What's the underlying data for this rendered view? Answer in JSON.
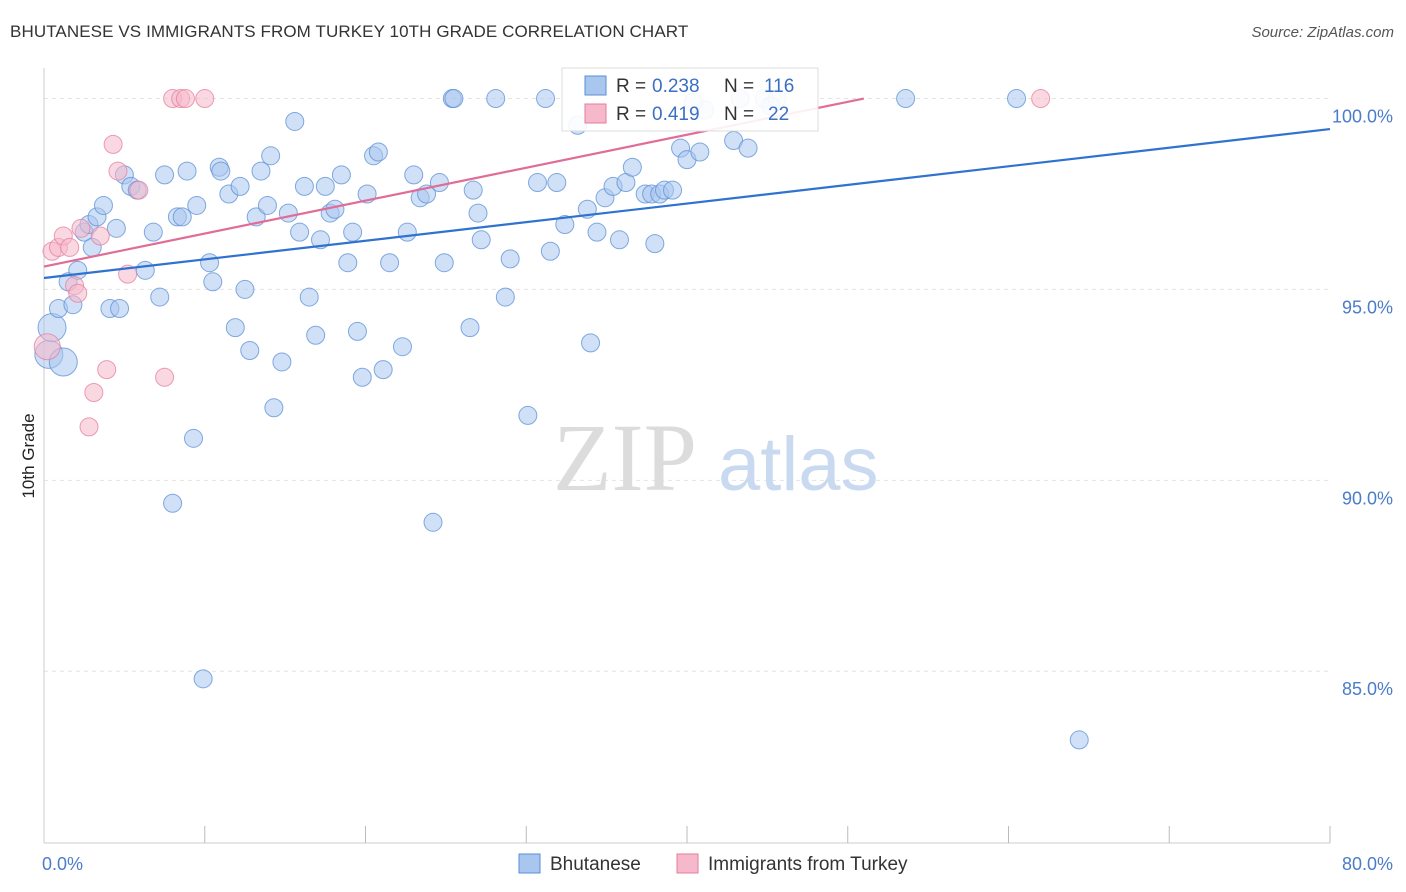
{
  "title": "BHUTANESE VS IMMIGRANTS FROM TURKEY 10TH GRADE CORRELATION CHART",
  "source": "Source: ZipAtlas.com",
  "watermark": {
    "zip": "ZIP",
    "atlas": "atlas"
  },
  "chart_data": {
    "type": "scatter",
    "ylabel": "10th Grade",
    "xlim": [
      0,
      80
    ],
    "ylim": [
      80.5,
      100.8
    ],
    "x_tick_labels": [
      {
        "value": 0,
        "label": "0.0%"
      },
      {
        "value": 80,
        "label": "80.0%"
      }
    ],
    "y_tick_labels": [
      {
        "value": 100,
        "label": "100.0%"
      },
      {
        "value": 95,
        "label": "95.0%"
      },
      {
        "value": 90,
        "label": "90.0%"
      },
      {
        "value": 85,
        "label": "85.0%"
      }
    ],
    "legend": {
      "r_label": "R =",
      "n_label": "N =",
      "entries": [
        {
          "series": "Bhutanese",
          "r": "0.238",
          "n": "116"
        },
        {
          "series": "Immigrants from Turkey",
          "r": "0.419",
          "n": "22"
        }
      ]
    },
    "colors": {
      "blue_fill": "#a9c6ee",
      "blue_stroke": "#5b8fd6",
      "blue_line": "#2f72cf",
      "pink_fill": "#f6b8cb",
      "pink_stroke": "#e67d9f",
      "pink_line": "#e06c97"
    },
    "series": [
      {
        "name": "Bhutanese",
        "trend": [
          [
            0,
            95.3
          ],
          [
            80,
            99.2
          ]
        ],
        "points": [
          [
            0.3,
            93.3
          ],
          [
            0.5,
            94.0
          ],
          [
            0.9,
            94.5
          ],
          [
            1.2,
            93.1
          ],
          [
            1.5,
            95.2
          ],
          [
            1.8,
            94.6
          ],
          [
            2.1,
            95.5
          ],
          [
            2.5,
            96.5
          ],
          [
            2.8,
            96.7
          ],
          [
            3.0,
            96.1
          ],
          [
            3.3,
            96.9
          ],
          [
            3.7,
            97.2
          ],
          [
            4.1,
            94.5
          ],
          [
            4.5,
            96.6
          ],
          [
            4.7,
            94.5
          ],
          [
            5.0,
            98.0
          ],
          [
            5.4,
            97.7
          ],
          [
            5.8,
            97.6
          ],
          [
            6.3,
            95.5
          ],
          [
            6.8,
            96.5
          ],
          [
            7.2,
            94.8
          ],
          [
            7.5,
            98.0
          ],
          [
            8.0,
            89.4
          ],
          [
            8.3,
            96.9
          ],
          [
            8.6,
            96.9
          ],
          [
            8.9,
            98.1
          ],
          [
            9.3,
            91.1
          ],
          [
            9.5,
            97.2
          ],
          [
            9.9,
            84.8
          ],
          [
            10.3,
            95.7
          ],
          [
            10.5,
            95.2
          ],
          [
            10.9,
            98.2
          ],
          [
            11.0,
            98.1
          ],
          [
            11.5,
            97.5
          ],
          [
            11.9,
            94.0
          ],
          [
            12.2,
            97.7
          ],
          [
            12.5,
            95.0
          ],
          [
            12.8,
            93.4
          ],
          [
            13.2,
            96.9
          ],
          [
            13.5,
            98.1
          ],
          [
            13.9,
            97.2
          ],
          [
            14.1,
            98.5
          ],
          [
            14.3,
            91.9
          ],
          [
            14.8,
            93.1
          ],
          [
            15.2,
            97.0
          ],
          [
            15.6,
            99.4
          ],
          [
            15.9,
            96.5
          ],
          [
            16.2,
            97.7
          ],
          [
            16.5,
            94.8
          ],
          [
            16.9,
            93.8
          ],
          [
            17.2,
            96.3
          ],
          [
            17.5,
            97.7
          ],
          [
            17.8,
            97.0
          ],
          [
            18.1,
            97.1
          ],
          [
            18.5,
            98.0
          ],
          [
            18.9,
            95.7
          ],
          [
            19.2,
            96.5
          ],
          [
            19.5,
            93.9
          ],
          [
            19.8,
            92.7
          ],
          [
            20.1,
            97.5
          ],
          [
            20.5,
            98.5
          ],
          [
            20.8,
            98.6
          ],
          [
            21.1,
            92.9
          ],
          [
            21.5,
            95.7
          ],
          [
            22.3,
            93.5
          ],
          [
            22.6,
            96.5
          ],
          [
            23.0,
            98.0
          ],
          [
            23.4,
            97.4
          ],
          [
            23.8,
            97.5
          ],
          [
            24.2,
            88.9
          ],
          [
            24.6,
            97.8
          ],
          [
            24.9,
            95.7
          ],
          [
            25.4,
            100.0
          ],
          [
            25.5,
            100.0
          ],
          [
            26.5,
            94.0
          ],
          [
            26.7,
            97.6
          ],
          [
            27.0,
            97.0
          ],
          [
            27.2,
            96.3
          ],
          [
            28.1,
            100.0
          ],
          [
            28.7,
            94.8
          ],
          [
            29.0,
            95.8
          ],
          [
            30.1,
            91.7
          ],
          [
            30.7,
            97.8
          ],
          [
            31.2,
            100.0
          ],
          [
            31.5,
            96.0
          ],
          [
            31.9,
            97.8
          ],
          [
            32.4,
            96.7
          ],
          [
            33.2,
            99.3
          ],
          [
            33.8,
            97.1
          ],
          [
            34.0,
            93.6
          ],
          [
            34.4,
            96.5
          ],
          [
            34.9,
            97.4
          ],
          [
            35.4,
            97.7
          ],
          [
            35.8,
            96.3
          ],
          [
            36.2,
            97.8
          ],
          [
            36.6,
            98.2
          ],
          [
            37.4,
            97.5
          ],
          [
            37.8,
            97.5
          ],
          [
            38.0,
            96.2
          ],
          [
            38.3,
            97.5
          ],
          [
            38.6,
            97.6
          ],
          [
            39.1,
            97.6
          ],
          [
            39.6,
            98.7
          ],
          [
            40.0,
            98.4
          ],
          [
            40.8,
            98.6
          ],
          [
            41.1,
            99.7
          ],
          [
            42.9,
            98.9
          ],
          [
            43.3,
            100.0
          ],
          [
            43.8,
            98.7
          ],
          [
            44.8,
            100.0
          ],
          [
            45.6,
            100.0
          ],
          [
            53.6,
            100.0
          ],
          [
            60.5,
            100.0
          ],
          [
            64.4,
            83.2
          ],
          [
            45.2,
            99.8
          ],
          [
            40.4,
            99.9
          ]
        ]
      },
      {
        "name": "Immigrants from Turkey",
        "trend": [
          [
            0,
            95.6
          ],
          [
            51,
            100.0
          ]
        ],
        "points": [
          [
            0.2,
            93.5
          ],
          [
            0.5,
            96.0
          ],
          [
            0.9,
            96.1
          ],
          [
            1.2,
            96.4
          ],
          [
            1.6,
            96.1
          ],
          [
            1.9,
            95.1
          ],
          [
            2.1,
            94.9
          ],
          [
            2.3,
            96.6
          ],
          [
            2.8,
            91.4
          ],
          [
            3.1,
            92.3
          ],
          [
            3.5,
            96.4
          ],
          [
            3.9,
            92.9
          ],
          [
            4.3,
            98.8
          ],
          [
            4.6,
            98.1
          ],
          [
            5.2,
            95.4
          ],
          [
            5.9,
            97.6
          ],
          [
            7.5,
            92.7
          ],
          [
            8.0,
            100.0
          ],
          [
            8.5,
            100.0
          ],
          [
            8.8,
            100.0
          ],
          [
            10.0,
            100.0
          ],
          [
            62.0,
            100.0
          ]
        ]
      }
    ]
  }
}
